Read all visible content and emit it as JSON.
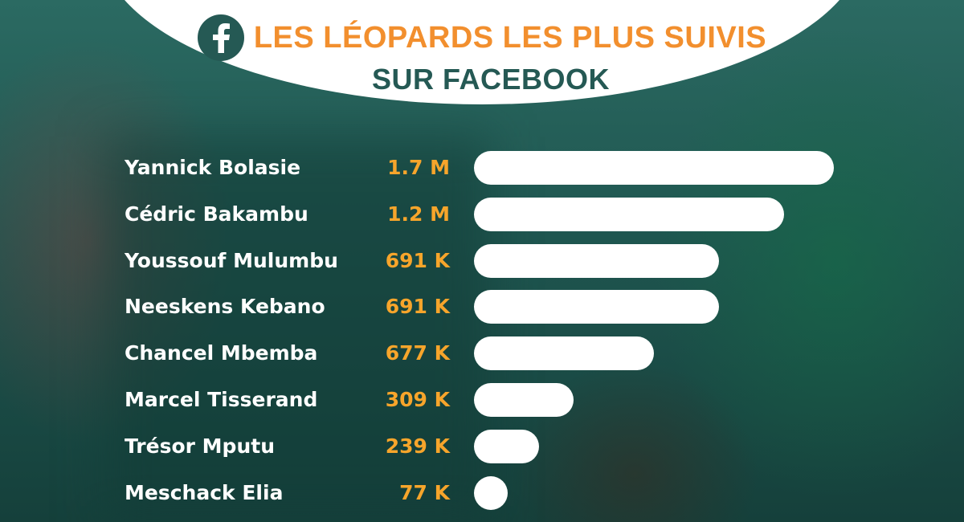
{
  "header": {
    "title_line1": "LES LÉOPARDS LES PLUS SUIVIS",
    "title_line2": "SUR FACEBOOK",
    "icon": "facebook-icon"
  },
  "colors": {
    "title_orange": "#f28f2e",
    "title_teal": "#255954",
    "value_orange": "#f7a52b",
    "bar_white": "#ffffff",
    "background": "#1d4d47"
  },
  "chart_data": {
    "type": "bar",
    "orientation": "horizontal",
    "title": "LES LÉOPARDS LES PLUS SUIVIS SUR FACEBOOK",
    "categories": [
      "Yannick Bolasie",
      "Cédric Bakambu",
      "Youssouf Mulumbu",
      "Neeskens Kebano",
      "Chancel Mbemba",
      "Marcel Tisserand",
      "Trésor Mputu",
      "Meschack Elia"
    ],
    "values": [
      1700000,
      1200000,
      691000,
      691000,
      677000,
      309000,
      239000,
      77000
    ],
    "value_labels": [
      "1.7 M",
      "1.2 M",
      "691 K",
      "691 K",
      "677 K",
      "309 K",
      "239 K",
      "77 K"
    ],
    "bar_fraction": [
      1.0,
      0.862,
      0.68,
      0.68,
      0.5,
      0.276,
      0.18,
      0.09
    ]
  }
}
